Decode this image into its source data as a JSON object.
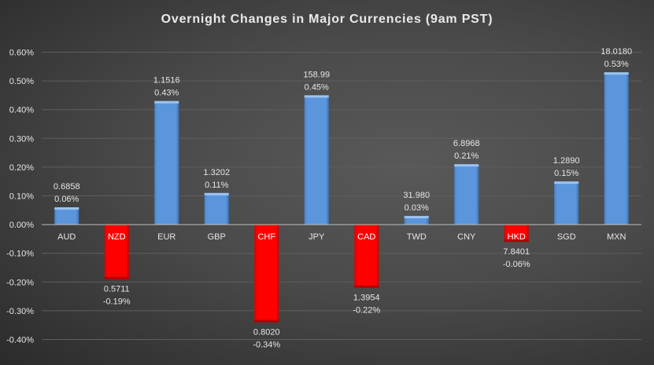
{
  "chart_data": {
    "type": "bar",
    "title": "Overnight Changes in Major Currencies (9am PST)",
    "xlabel": "",
    "ylabel": "",
    "ylim": [
      -0.4,
      0.6
    ],
    "yticks": [
      "0.60%",
      "0.50%",
      "0.40%",
      "0.30%",
      "0.20%",
      "0.10%",
      "0.00%",
      "-0.10%",
      "-0.20%",
      "-0.30%",
      "-0.40%"
    ],
    "ytick_values": [
      0.6,
      0.5,
      0.4,
      0.3,
      0.2,
      0.1,
      0.0,
      -0.1,
      -0.2,
      -0.3,
      -0.4
    ],
    "grid": true,
    "categories": [
      "AUD",
      "NZD",
      "EUR",
      "GBP",
      "CHF",
      "JPY",
      "CAD",
      "TWD",
      "CNY",
      "HKD",
      "SGD",
      "MXN"
    ],
    "values": [
      0.06,
      -0.19,
      0.43,
      0.11,
      -0.34,
      0.45,
      -0.22,
      0.03,
      0.21,
      -0.06,
      0.15,
      0.53
    ],
    "pct_labels": [
      "0.06%",
      "-0.19%",
      "0.43%",
      "0.11%",
      "-0.34%",
      "0.45%",
      "-0.22%",
      "0.03%",
      "0.21%",
      "-0.06%",
      "0.15%",
      "0.53%"
    ],
    "rate_labels": [
      "0.6858",
      "0.5711",
      "1.1516",
      "1.3202",
      "0.8020",
      "158.99",
      "1.3954",
      "31.980",
      "6.8968",
      "7.8401",
      "1.2890",
      "18.0180"
    ],
    "colors": {
      "positive": "#5b96dc",
      "negative": "#ff0000",
      "background": "#454545",
      "grid": "#5e5e5e",
      "axis": "#bfbfbf"
    }
  }
}
